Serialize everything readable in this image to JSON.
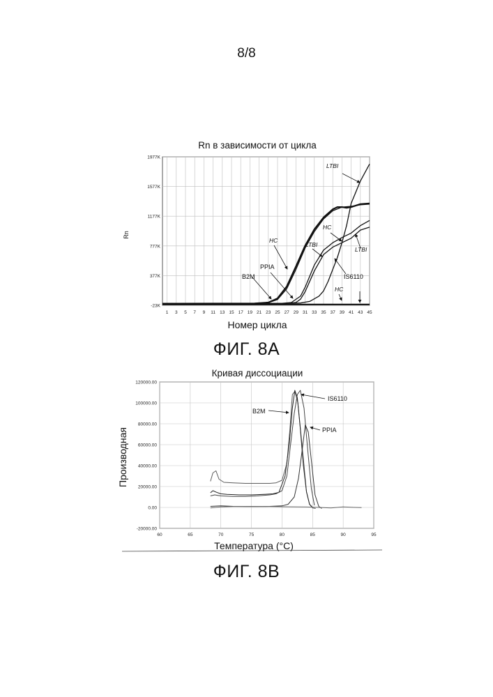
{
  "page_number": "8/8",
  "figures": {
    "a_label": "ФИГ. 8A",
    "b_label": "ФИГ. 8B"
  },
  "chart_data": [
    {
      "type": "line",
      "title": "Rn в зависимости от цикла",
      "xlabel": "Номер цикла",
      "ylabel": "Rn",
      "xlim": [
        0,
        45
      ],
      "ylim": [
        -23,
        1977
      ],
      "y_unit": "K",
      "xticks": [
        1,
        3,
        5,
        7,
        9,
        11,
        13,
        15,
        17,
        19,
        21,
        23,
        25,
        27,
        29,
        31,
        33,
        35,
        37,
        39,
        41,
        43,
        45
      ],
      "yticks": [
        {
          "value": -23,
          "label": "-23K"
        },
        {
          "value": 377,
          "label": "377K"
        },
        {
          "value": 777,
          "label": "777K"
        },
        {
          "value": 1177,
          "label": "1177K"
        },
        {
          "value": 1577,
          "label": "1577K"
        },
        {
          "value": 1977,
          "label": "1977K"
        }
      ],
      "grid": true,
      "series": [
        {
          "x": [
            0,
            20,
            23,
            25,
            27,
            29,
            31,
            33,
            35,
            37,
            38,
            39,
            40,
            41,
            43,
            45
          ],
          "y": [
            0,
            2,
            15,
            70,
            230,
            500,
            780,
            1000,
            1160,
            1270,
            1300,
            1300,
            1290,
            1300,
            1340,
            1350
          ]
        },
        {
          "x": [
            0,
            20,
            23,
            25,
            27,
            29,
            31,
            33,
            35,
            37,
            39,
            41,
            43,
            45
          ],
          "y": [
            0,
            2,
            12,
            55,
            200,
            460,
            750,
            970,
            1140,
            1250,
            1300,
            1310,
            1330,
            1340
          ]
        },
        {
          "x": [
            0,
            26,
            28,
            30,
            31,
            33,
            35,
            37,
            39,
            41,
            43,
            45
          ],
          "y": [
            0,
            3,
            15,
            100,
            220,
            520,
            720,
            820,
            890,
            950,
            1050,
            1120
          ]
        },
        {
          "x": [
            0,
            27,
            29,
            30,
            31,
            33,
            35,
            37,
            39,
            41,
            43,
            45
          ],
          "y": [
            0,
            3,
            15,
            60,
            160,
            440,
            660,
            760,
            820,
            880,
            990,
            1030
          ]
        },
        {
          "x": [
            0,
            28,
            30,
            32,
            34,
            35,
            36,
            38,
            39,
            40,
            41,
            43,
            45
          ],
          "y": [
            0,
            3,
            8,
            30,
            100,
            170,
            300,
            620,
            820,
            1050,
            1350,
            1650,
            1880
          ]
        },
        {
          "x": [
            0,
            45
          ],
          "y": [
            -12,
            -12
          ]
        }
      ],
      "annotations": [
        "LTBI",
        "HC",
        "LTBI",
        "HC",
        "LTBI",
        "B2M",
        "PPIA",
        "IS6110",
        "HC"
      ]
    },
    {
      "type": "line",
      "title": "Кривая диссоциации",
      "xlabel": "Температура (°C)",
      "ylabel": "Производная",
      "xlim": [
        60,
        95
      ],
      "ylim": [
        -20000,
        120000
      ],
      "xticks": [
        60,
        65,
        70,
        75,
        80,
        85,
        90,
        95
      ],
      "yticks": [
        {
          "value": -20000,
          "label": "-20000.00"
        },
        {
          "value": 0,
          "label": "0.00"
        },
        {
          "value": 20000,
          "label": "20000.00"
        },
        {
          "value": 40000,
          "label": "40000.00"
        },
        {
          "value": 60000,
          "label": "60000.00"
        },
        {
          "value": 80000,
          "label": "80000.00"
        },
        {
          "value": 100000,
          "label": "100000.00"
        },
        {
          "value": 120000,
          "label": "120000.00"
        }
      ],
      "grid": true,
      "series": [
        {
          "x": [
            68.3,
            68.7,
            69.2,
            69.7,
            70.5,
            72,
            74,
            76,
            78,
            79,
            80,
            80.8,
            81.3,
            81.7,
            82.1,
            82.6,
            83.1,
            83.6,
            84,
            84.5,
            85,
            85.5
          ],
          "y": [
            25000,
            33000,
            35000,
            27000,
            24000,
            23500,
            23000,
            23000,
            23000,
            23500,
            26000,
            42000,
            75000,
            108000,
            111000,
            100000,
            70000,
            40000,
            15000,
            3000,
            -500,
            -1000
          ]
        },
        {
          "x": [
            68.3,
            68.7,
            69.3,
            70,
            71,
            73,
            75,
            77,
            78.5,
            79.5,
            80.5,
            81.2,
            81.7,
            82.1,
            82.5,
            83,
            83.5,
            84,
            84.5,
            85
          ],
          "y": [
            14000,
            16000,
            14500,
            13000,
            12500,
            12000,
            12000,
            12500,
            13000,
            14500,
            30000,
            62000,
            95000,
            112000,
            105000,
            75000,
            40000,
            15000,
            3000,
            0
          ]
        },
        {
          "x": [
            68.3,
            69,
            70,
            72,
            74,
            76,
            78,
            79,
            80,
            80.8,
            81.4,
            82,
            82.5,
            83,
            83.6,
            84.2,
            84.8,
            85.3
          ],
          "y": [
            11000,
            12000,
            11000,
            10500,
            10500,
            11000,
            12000,
            13000,
            16000,
            30000,
            60000,
            90000,
            108000,
            112000,
            95000,
            55000,
            18000,
            2000
          ]
        },
        {
          "x": [
            68.3,
            70,
            72,
            74,
            76,
            78,
            80,
            81,
            82,
            82.7,
            83.3,
            83.8,
            84.3,
            84.8,
            85.4,
            86,
            86.5
          ],
          "y": [
            1000,
            1500,
            1000,
            800,
            800,
            1000,
            1500,
            3000,
            10000,
            28000,
            55000,
            79000,
            72000,
            45000,
            12000,
            1000,
            -1000
          ]
        },
        {
          "x": [
            68.3,
            70,
            72,
            75,
            78,
            81,
            84,
            86,
            88,
            90,
            92,
            93
          ],
          "y": [
            -500,
            500,
            800,
            1000,
            800,
            600,
            400,
            0,
            -500,
            500,
            0,
            -200
          ]
        }
      ],
      "annotations": [
        "IS6110",
        "B2M",
        "PPIA"
      ]
    }
  ]
}
